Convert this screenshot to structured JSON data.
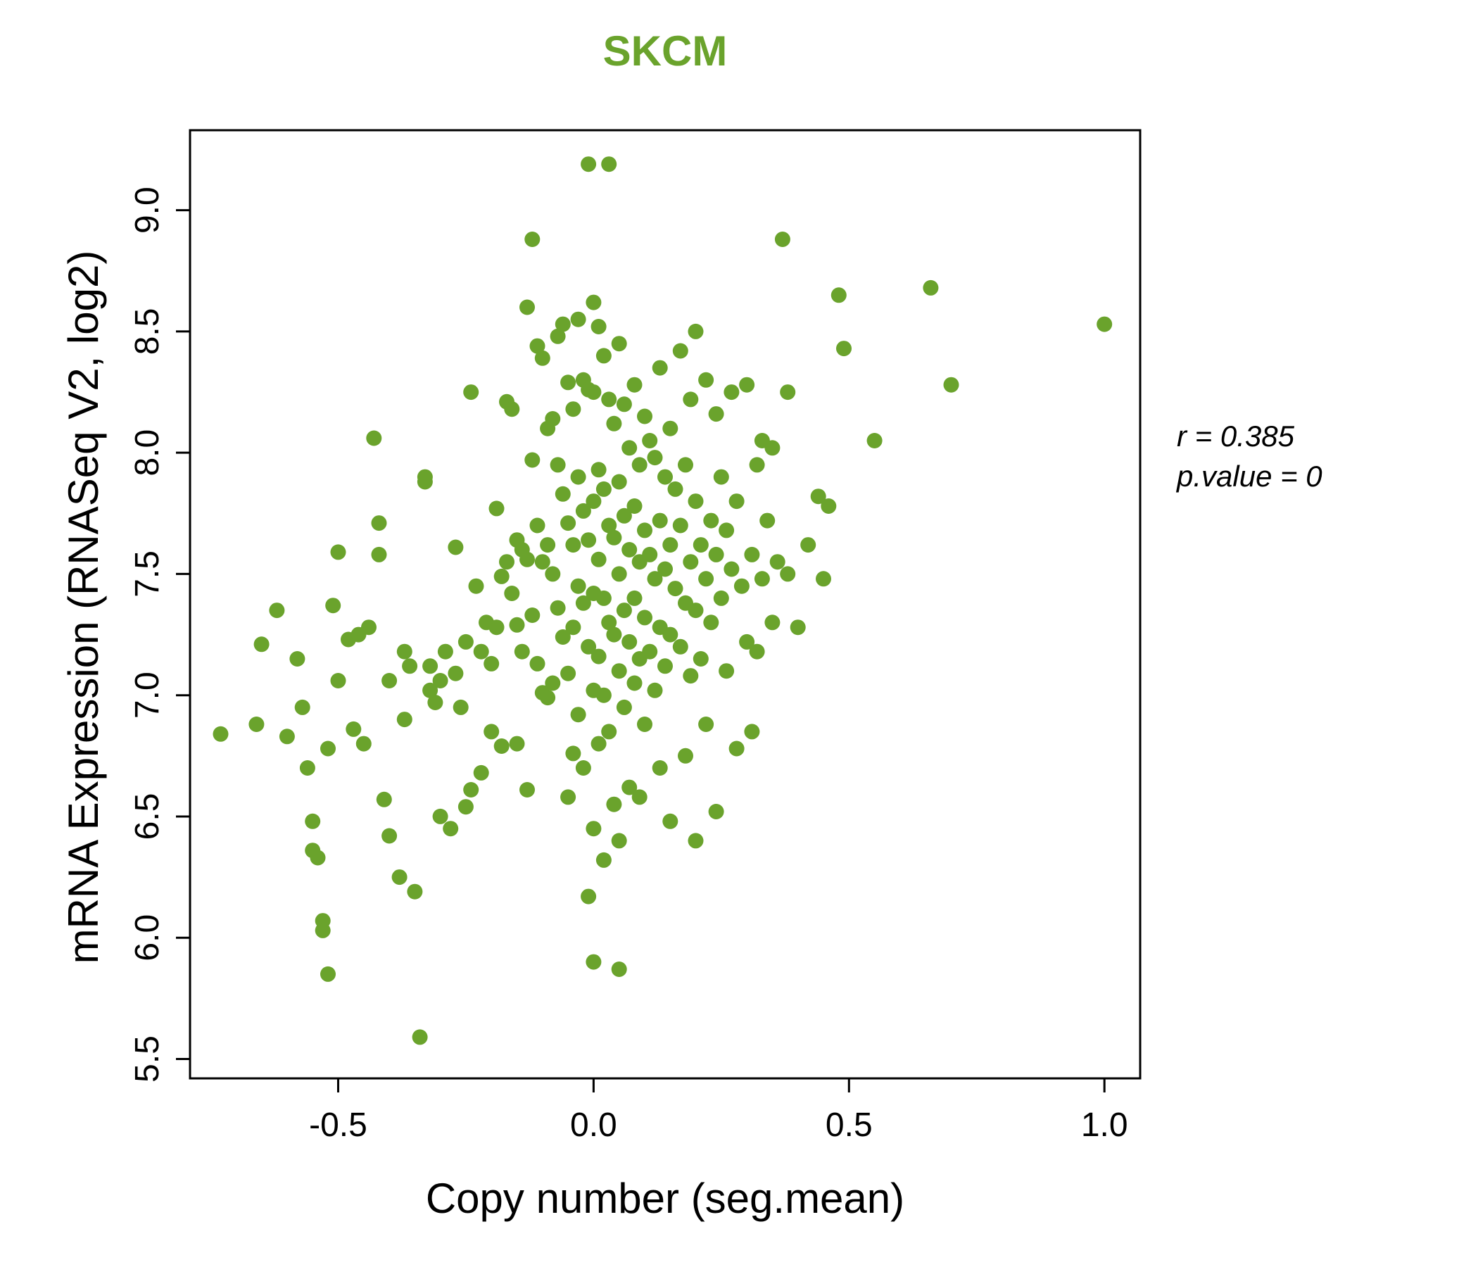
{
  "title": "SKCM",
  "title_color": "#6aa32c",
  "annotation": {
    "line1": "r = 0.385",
    "line2": "p.value = 0"
  },
  "chart_data": {
    "type": "scatter",
    "title": "SKCM",
    "xlabel": "Copy number (seg.mean)",
    "ylabel": "mRNA Expression (RNASeq V2, log2)",
    "xlim": [
      -0.79,
      1.07
    ],
    "ylim": [
      5.42,
      9.33
    ],
    "x_ticks": [
      -0.5,
      0.0,
      0.5,
      1.0
    ],
    "x_tick_labels": [
      "-0.5",
      "0.0",
      "0.5",
      "1.0"
    ],
    "y_ticks": [
      5.5,
      6.0,
      6.5,
      7.0,
      7.5,
      8.0,
      8.5,
      9.0
    ],
    "y_tick_labels": [
      "5.5",
      "6.0",
      "6.5",
      "7.0",
      "7.5",
      "8.0",
      "8.5",
      "9.0"
    ],
    "point_color": "#6aa32c",
    "point_radius": 11,
    "grid": false,
    "legend": "none",
    "correlation_r": 0.385,
    "p_value": 0,
    "points": [
      [
        -0.73,
        6.84
      ],
      [
        -0.66,
        6.88
      ],
      [
        -0.65,
        7.21
      ],
      [
        -0.62,
        7.35
      ],
      [
        -0.6,
        6.83
      ],
      [
        -0.58,
        7.15
      ],
      [
        -0.57,
        6.95
      ],
      [
        -0.56,
        6.7
      ],
      [
        -0.55,
        6.48
      ],
      [
        -0.55,
        6.36
      ],
      [
        -0.54,
        6.33
      ],
      [
        -0.53,
        6.07
      ],
      [
        -0.53,
        6.03
      ],
      [
        -0.52,
        5.85
      ],
      [
        -0.52,
        6.78
      ],
      [
        -0.51,
        7.37
      ],
      [
        -0.5,
        7.59
      ],
      [
        -0.5,
        7.06
      ],
      [
        -0.48,
        7.23
      ],
      [
        -0.47,
        6.86
      ],
      [
        -0.46,
        7.25
      ],
      [
        -0.45,
        6.8
      ],
      [
        -0.44,
        7.28
      ],
      [
        -0.43,
        8.06
      ],
      [
        -0.42,
        7.71
      ],
      [
        -0.42,
        7.58
      ],
      [
        -0.41,
        6.57
      ],
      [
        -0.4,
        7.06
      ],
      [
        -0.4,
        6.42
      ],
      [
        -0.38,
        6.25
      ],
      [
        -0.37,
        7.18
      ],
      [
        -0.37,
        6.9
      ],
      [
        -0.36,
        7.12
      ],
      [
        -0.35,
        6.19
      ],
      [
        -0.34,
        5.59
      ],
      [
        -0.33,
        7.9
      ],
      [
        -0.33,
        7.88
      ],
      [
        -0.32,
        7.12
      ],
      [
        -0.32,
        7.02
      ],
      [
        -0.31,
        6.97
      ],
      [
        -0.3,
        7.06
      ],
      [
        -0.3,
        6.5
      ],
      [
        -0.29,
        7.18
      ],
      [
        -0.28,
        6.45
      ],
      [
        -0.27,
        7.61
      ],
      [
        -0.27,
        7.09
      ],
      [
        -0.26,
        6.95
      ],
      [
        -0.25,
        7.22
      ],
      [
        -0.25,
        6.54
      ],
      [
        -0.24,
        6.61
      ],
      [
        -0.24,
        8.25
      ],
      [
        -0.23,
        7.45
      ],
      [
        -0.22,
        7.18
      ],
      [
        -0.22,
        6.68
      ],
      [
        -0.21,
        7.3
      ],
      [
        -0.2,
        7.13
      ],
      [
        -0.2,
        6.85
      ],
      [
        -0.19,
        7.77
      ],
      [
        -0.19,
        7.28
      ],
      [
        -0.18,
        7.49
      ],
      [
        -0.18,
        6.79
      ],
      [
        -0.17,
        8.21
      ],
      [
        -0.17,
        7.55
      ],
      [
        -0.16,
        8.18
      ],
      [
        -0.16,
        7.42
      ],
      [
        -0.15,
        7.64
      ],
      [
        -0.15,
        7.29
      ],
      [
        -0.15,
        6.8
      ],
      [
        -0.14,
        7.6
      ],
      [
        -0.14,
        7.18
      ],
      [
        -0.13,
        8.6
      ],
      [
        -0.13,
        7.56
      ],
      [
        -0.13,
        6.61
      ],
      [
        -0.12,
        8.88
      ],
      [
        -0.12,
        7.97
      ],
      [
        -0.12,
        7.33
      ],
      [
        -0.11,
        8.44
      ],
      [
        -0.11,
        7.7
      ],
      [
        -0.11,
        7.13
      ],
      [
        -0.1,
        8.39
      ],
      [
        -0.1,
        7.55
      ],
      [
        -0.1,
        7.01
      ],
      [
        -0.09,
        8.1
      ],
      [
        -0.09,
        7.62
      ],
      [
        -0.09,
        6.99
      ],
      [
        -0.08,
        8.14
      ],
      [
        -0.08,
        7.5
      ],
      [
        -0.08,
        7.05
      ],
      [
        -0.07,
        8.48
      ],
      [
        -0.07,
        7.95
      ],
      [
        -0.07,
        7.36
      ],
      [
        -0.06,
        8.53
      ],
      [
        -0.06,
        7.83
      ],
      [
        -0.06,
        7.24
      ],
      [
        -0.05,
        8.29
      ],
      [
        -0.05,
        7.71
      ],
      [
        -0.05,
        7.09
      ],
      [
        -0.05,
        6.58
      ],
      [
        -0.04,
        8.18
      ],
      [
        -0.04,
        7.62
      ],
      [
        -0.04,
        7.28
      ],
      [
        -0.04,
        6.76
      ],
      [
        -0.03,
        8.55
      ],
      [
        -0.03,
        7.9
      ],
      [
        -0.03,
        7.45
      ],
      [
        -0.03,
        6.92
      ],
      [
        -0.02,
        8.3
      ],
      [
        -0.02,
        7.76
      ],
      [
        -0.02,
        7.38
      ],
      [
        -0.02,
        6.7
      ],
      [
        -0.01,
        9.19
      ],
      [
        -0.01,
        8.26
      ],
      [
        -0.01,
        7.64
      ],
      [
        -0.01,
        7.2
      ],
      [
        -0.01,
        6.17
      ],
      [
        0.0,
        8.62
      ],
      [
        0.0,
        8.25
      ],
      [
        0.0,
        7.8
      ],
      [
        0.0,
        7.42
      ],
      [
        0.0,
        7.02
      ],
      [
        0.0,
        6.45
      ],
      [
        0.0,
        5.9
      ],
      [
        0.01,
        8.52
      ],
      [
        0.01,
        7.93
      ],
      [
        0.01,
        7.56
      ],
      [
        0.01,
        7.16
      ],
      [
        0.01,
        6.8
      ],
      [
        0.02,
        8.4
      ],
      [
        0.02,
        7.85
      ],
      [
        0.02,
        7.4
      ],
      [
        0.02,
        7.0
      ],
      [
        0.02,
        6.32
      ],
      [
        0.03,
        9.19
      ],
      [
        0.03,
        8.22
      ],
      [
        0.03,
        7.7
      ],
      [
        0.03,
        7.3
      ],
      [
        0.03,
        6.85
      ],
      [
        0.04,
        8.12
      ],
      [
        0.04,
        7.65
      ],
      [
        0.04,
        7.25
      ],
      [
        0.04,
        6.55
      ],
      [
        0.05,
        8.45
      ],
      [
        0.05,
        7.88
      ],
      [
        0.05,
        7.5
      ],
      [
        0.05,
        7.1
      ],
      [
        0.05,
        6.4
      ],
      [
        0.05,
        5.87
      ],
      [
        0.06,
        8.2
      ],
      [
        0.06,
        7.74
      ],
      [
        0.06,
        7.35
      ],
      [
        0.06,
        6.95
      ],
      [
        0.07,
        8.02
      ],
      [
        0.07,
        7.6
      ],
      [
        0.07,
        7.22
      ],
      [
        0.07,
        6.62
      ],
      [
        0.08,
        8.28
      ],
      [
        0.08,
        7.78
      ],
      [
        0.08,
        7.4
      ],
      [
        0.08,
        7.05
      ],
      [
        0.09,
        7.95
      ],
      [
        0.09,
        7.55
      ],
      [
        0.09,
        7.15
      ],
      [
        0.09,
        6.58
      ],
      [
        0.1,
        8.15
      ],
      [
        0.1,
        7.68
      ],
      [
        0.1,
        7.32
      ],
      [
        0.1,
        6.88
      ],
      [
        0.11,
        8.05
      ],
      [
        0.11,
        7.58
      ],
      [
        0.11,
        7.18
      ],
      [
        0.12,
        7.98
      ],
      [
        0.12,
        7.48
      ],
      [
        0.12,
        7.02
      ],
      [
        0.13,
        8.35
      ],
      [
        0.13,
        7.72
      ],
      [
        0.13,
        7.28
      ],
      [
        0.13,
        6.7
      ],
      [
        0.14,
        7.9
      ],
      [
        0.14,
        7.52
      ],
      [
        0.14,
        7.12
      ],
      [
        0.15,
        8.1
      ],
      [
        0.15,
        7.62
      ],
      [
        0.15,
        7.25
      ],
      [
        0.15,
        6.48
      ],
      [
        0.16,
        7.85
      ],
      [
        0.16,
        7.44
      ],
      [
        0.17,
        8.42
      ],
      [
        0.17,
        7.7
      ],
      [
        0.17,
        7.2
      ],
      [
        0.18,
        7.95
      ],
      [
        0.18,
        7.38
      ],
      [
        0.18,
        6.75
      ],
      [
        0.19,
        8.22
      ],
      [
        0.19,
        7.55
      ],
      [
        0.19,
        7.08
      ],
      [
        0.2,
        8.5
      ],
      [
        0.2,
        7.8
      ],
      [
        0.2,
        7.35
      ],
      [
        0.2,
        6.4
      ],
      [
        0.21,
        7.62
      ],
      [
        0.21,
        7.15
      ],
      [
        0.22,
        8.3
      ],
      [
        0.22,
        7.48
      ],
      [
        0.22,
        6.88
      ],
      [
        0.23,
        7.72
      ],
      [
        0.23,
        7.3
      ],
      [
        0.24,
        8.16
      ],
      [
        0.24,
        7.58
      ],
      [
        0.24,
        6.52
      ],
      [
        0.25,
        7.9
      ],
      [
        0.25,
        7.4
      ],
      [
        0.26,
        7.68
      ],
      [
        0.26,
        7.1
      ],
      [
        0.27,
        8.25
      ],
      [
        0.27,
        7.52
      ],
      [
        0.28,
        7.8
      ],
      [
        0.28,
        6.78
      ],
      [
        0.29,
        7.45
      ],
      [
        0.3,
        8.28
      ],
      [
        0.3,
        7.22
      ],
      [
        0.31,
        7.58
      ],
      [
        0.31,
        6.85
      ],
      [
        0.32,
        7.95
      ],
      [
        0.32,
        7.18
      ],
      [
        0.33,
        8.05
      ],
      [
        0.33,
        7.48
      ],
      [
        0.34,
        7.72
      ],
      [
        0.35,
        8.02
      ],
      [
        0.35,
        7.3
      ],
      [
        0.36,
        7.55
      ],
      [
        0.37,
        8.88
      ],
      [
        0.38,
        8.25
      ],
      [
        0.38,
        7.5
      ],
      [
        0.4,
        7.28
      ],
      [
        0.42,
        7.62
      ],
      [
        0.44,
        7.82
      ],
      [
        0.45,
        7.48
      ],
      [
        0.46,
        7.78
      ],
      [
        0.48,
        8.65
      ],
      [
        0.49,
        8.43
      ],
      [
        0.55,
        8.05
      ],
      [
        0.66,
        8.68
      ],
      [
        0.7,
        8.28
      ],
      [
        1.0,
        8.53
      ]
    ]
  }
}
